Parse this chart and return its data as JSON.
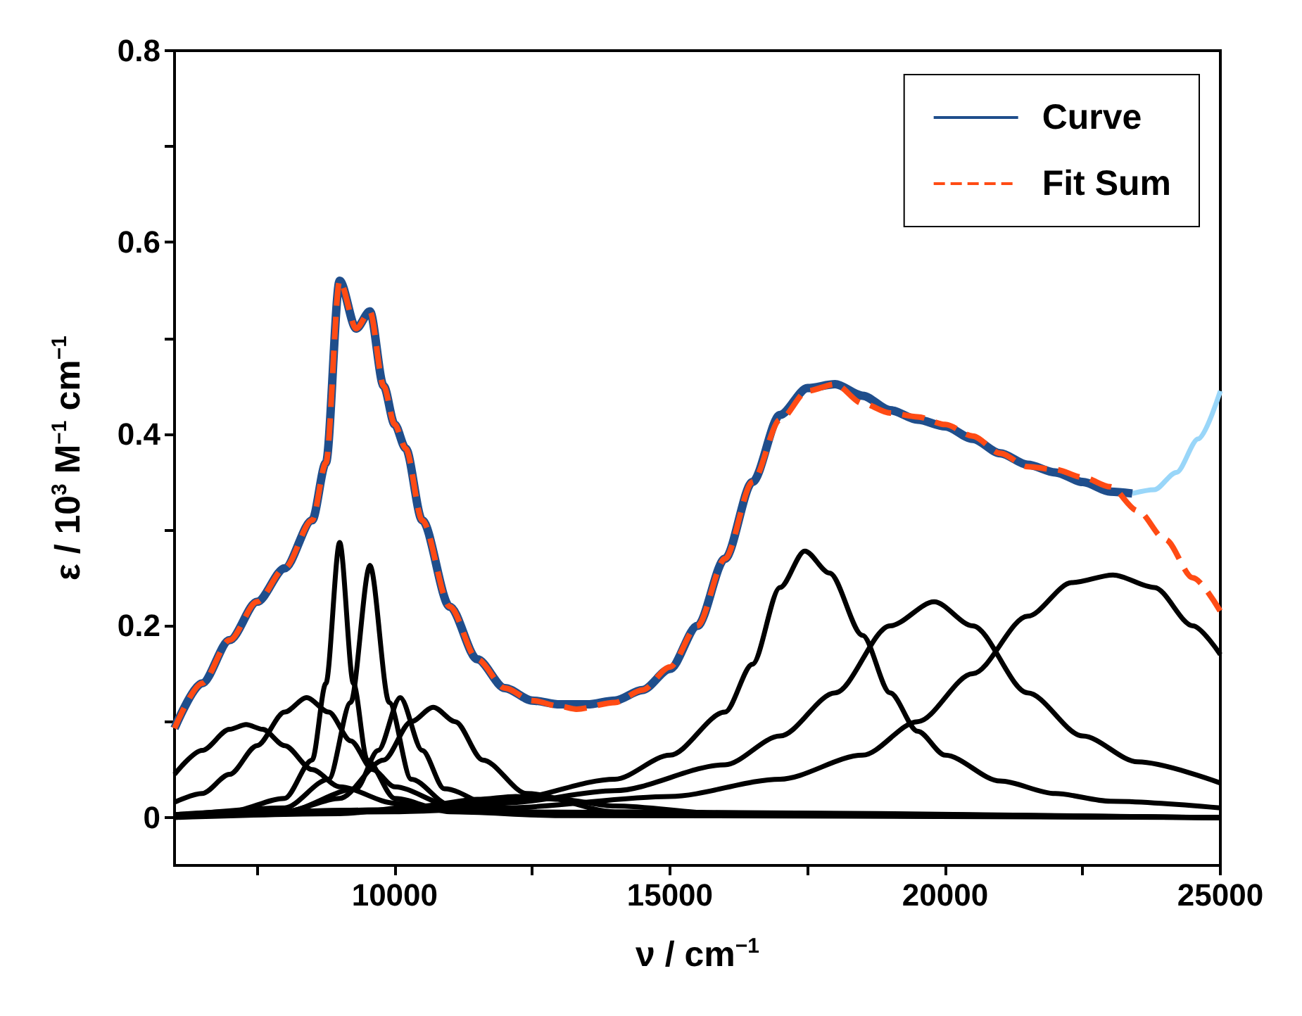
{
  "chart_data": {
    "type": "line",
    "xlabel": "ν / cm$^{−1}$",
    "ylabel": "ε / 10$^{3}$ M$^{−1}$ cm$^{−1}$",
    "xlim": [
      6000,
      25000
    ],
    "xticks": [
      {
        "value": 7500,
        "label": null
      },
      10000,
      {
        "value": 12500,
        "label": null
      },
      15000,
      {
        "value": 17500,
        "label": null
      },
      20000,
      {
        "value": 22500,
        "label": null
      },
      25000
    ],
    "ylim": [
      -0.05,
      0.8
    ],
    "yticks": [
      0,
      {
        "value": 0.1,
        "label": null
      },
      0.2,
      {
        "value": 0.3,
        "label": null
      },
      0.4,
      {
        "value": 0.5,
        "label": null
      },
      0.6,
      {
        "value": 0.7,
        "label": null
      },
      0.8
    ],
    "grid": false,
    "legend": "top right",
    "marker": "none",
    "series": [
      {
        "name": "Curve",
        "color": "#1f4e8c",
        "line_style": "solid",
        "x": [
          6000,
          6500,
          7000,
          7500,
          8000,
          8500,
          8750,
          9000,
          9300,
          9550,
          9800,
          10000,
          10200,
          10500,
          11000,
          11500,
          12000,
          12500,
          13000,
          13500,
          14000,
          14500,
          15000,
          15500,
          16000,
          16500,
          17000,
          17500,
          18000,
          18500,
          19000,
          19500,
          20000,
          20500,
          21000,
          21500,
          22000,
          22500,
          23000,
          23400
        ],
        "values": [
          0.093,
          0.14,
          0.185,
          0.225,
          0.26,
          0.31,
          0.37,
          0.56,
          0.51,
          0.528,
          0.45,
          0.41,
          0.385,
          0.31,
          0.22,
          0.165,
          0.135,
          0.122,
          0.118,
          0.118,
          0.122,
          0.133,
          0.155,
          0.2,
          0.27,
          0.35,
          0.42,
          0.448,
          0.452,
          0.44,
          0.425,
          0.415,
          0.408,
          0.395,
          0.38,
          0.368,
          0.36,
          0.35,
          0.34,
          0.338
        ]
      },
      {
        "color": "#99d6f9",
        "line_style": "solid",
        "x": [
          23400,
          23800,
          24200,
          24600,
          25000
        ],
        "values": [
          0.338,
          0.342,
          0.36,
          0.395,
          0.445
        ]
      },
      {
        "name": "Fit Sum",
        "color": "#ff4b14",
        "line_style": "dashed",
        "x": [
          6000,
          6500,
          7000,
          7500,
          8000,
          8500,
          8750,
          9000,
          9300,
          9550,
          9800,
          10000,
          10200,
          10500,
          11000,
          11500,
          12000,
          12500,
          13000,
          13300,
          14000,
          14500,
          15000,
          15500,
          16000,
          16500,
          17000,
          17500,
          18000,
          18500,
          19000,
          19500,
          20000,
          20500,
          21000,
          21500,
          22000,
          22500,
          23000,
          23500,
          24000,
          24500,
          25000
        ],
        "values": [
          0.093,
          0.14,
          0.185,
          0.225,
          0.26,
          0.31,
          0.37,
          0.56,
          0.51,
          0.528,
          0.45,
          0.41,
          0.385,
          0.31,
          0.22,
          0.165,
          0.135,
          0.122,
          0.116,
          0.113,
          0.12,
          0.133,
          0.157,
          0.2,
          0.27,
          0.35,
          0.415,
          0.445,
          0.452,
          0.432,
          0.422,
          0.418,
          0.41,
          0.398,
          0.38,
          0.366,
          0.363,
          0.355,
          0.345,
          0.32,
          0.29,
          0.25,
          0.215
        ]
      },
      {
        "color": "#000000",
        "line_style": "solid",
        "x": [
          6000,
          6500,
          7000,
          7300,
          7600,
          8000,
          8500,
          9000,
          10000,
          11000,
          13000,
          25000
        ],
        "values": [
          0.045,
          0.07,
          0.092,
          0.097,
          0.092,
          0.075,
          0.05,
          0.032,
          0.015,
          0.008,
          0.003,
          0
        ]
      },
      {
        "color": "#000000",
        "line_style": "solid",
        "x": [
          6000,
          6500,
          7000,
          7500,
          8000,
          8400,
          8800,
          9200,
          9600,
          10000,
          11000,
          13000,
          25000
        ],
        "values": [
          0.016,
          0.025,
          0.045,
          0.075,
          0.11,
          0.125,
          0.11,
          0.08,
          0.05,
          0.032,
          0.013,
          0.004,
          0
        ]
      },
      {
        "color": "#000000",
        "line_style": "solid",
        "x": [
          6000,
          7000,
          8000,
          8500,
          8750,
          9000,
          9250,
          9500,
          10000,
          11000,
          13000,
          25000
        ],
        "values": [
          0.003,
          0.006,
          0.02,
          0.06,
          0.14,
          0.287,
          0.14,
          0.06,
          0.02,
          0.006,
          0.002,
          0
        ]
      },
      {
        "color": "#000000",
        "line_style": "solid",
        "x": [
          6000,
          8000,
          8800,
          9200,
          9550,
          9900,
          10300,
          11000,
          13000,
          25000
        ],
        "values": [
          0.002,
          0.01,
          0.04,
          0.12,
          0.263,
          0.12,
          0.04,
          0.013,
          0.003,
          0
        ]
      },
      {
        "color": "#000000",
        "line_style": "solid",
        "x": [
          6000,
          8000,
          9300,
          9700,
          10100,
          10500,
          10900,
          12000,
          25000
        ],
        "values": [
          0.001,
          0.006,
          0.03,
          0.07,
          0.125,
          0.07,
          0.03,
          0.006,
          0
        ]
      },
      {
        "color": "#000000",
        "line_style": "solid",
        "x": [
          6000,
          8000,
          9000,
          9800,
          10300,
          10700,
          11100,
          11600,
          12400,
          14000,
          25000
        ],
        "values": [
          0.002,
          0.006,
          0.02,
          0.06,
          0.1,
          0.115,
          0.1,
          0.06,
          0.025,
          0.006,
          0
        ]
      },
      {
        "color": "#000000",
        "line_style": "solid",
        "x": [
          6000,
          9000,
          10500,
          11500,
          12200,
          13000,
          14000,
          16000,
          25000
        ],
        "values": [
          0,
          0.004,
          0.012,
          0.019,
          0.022,
          0.019,
          0.012,
          0.004,
          0
        ]
      },
      {
        "color": "#000000",
        "line_style": "solid",
        "x": [
          6000,
          10000,
          12000,
          14000,
          15000,
          16000,
          16500,
          17000,
          17450,
          17900,
          18500,
          19000,
          19500,
          20000,
          21000,
          22000,
          23000,
          25000
        ],
        "values": [
          0.002,
          0.008,
          0.018,
          0.04,
          0.065,
          0.11,
          0.16,
          0.24,
          0.278,
          0.255,
          0.19,
          0.13,
          0.09,
          0.065,
          0.038,
          0.025,
          0.017,
          0.01
        ]
      },
      {
        "color": "#000000",
        "line_style": "solid",
        "x": [
          6000,
          10000,
          12000,
          14000,
          16000,
          17000,
          18000,
          19000,
          19800,
          20500,
          21500,
          22500,
          23500,
          25000
        ],
        "values": [
          0.003,
          0.008,
          0.015,
          0.028,
          0.055,
          0.085,
          0.13,
          0.2,
          0.225,
          0.2,
          0.13,
          0.085,
          0.058,
          0.036
        ]
      },
      {
        "color": "#000000",
        "line_style": "solid",
        "x": [
          6000,
          10000,
          12000,
          15000,
          17000,
          18500,
          19500,
          20500,
          21500,
          22300,
          23050,
          23800,
          24500,
          25000
        ],
        "values": [
          0.002,
          0.006,
          0.01,
          0.022,
          0.04,
          0.065,
          0.1,
          0.15,
          0.21,
          0.245,
          0.253,
          0.24,
          0.2,
          0.17
        ]
      }
    ]
  }
}
